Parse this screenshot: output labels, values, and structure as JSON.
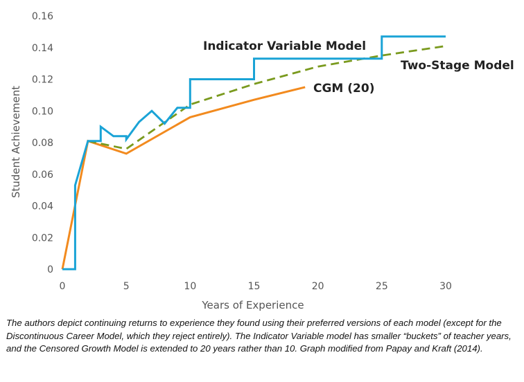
{
  "chart_data": {
    "type": "line",
    "xlabel": "Years of Experience",
    "ylabel": "Student Achievement",
    "xlim": [
      0,
      30
    ],
    "ylim": [
      0,
      0.16
    ],
    "x_ticks": [
      "0",
      "5",
      "10",
      "15",
      "20",
      "25",
      "30"
    ],
    "y_ticks": [
      "0",
      "0.02",
      "0.04",
      "0.06",
      "0.08",
      "0.10",
      "0.12",
      "0.14",
      "0.16"
    ],
    "grid": false,
    "legend": "inline labels",
    "series": [
      {
        "name": "Indicator Variable Model",
        "color": "#1aa3d6",
        "dash": "solid",
        "x": [
          0,
          1,
          1,
          2,
          3,
          3,
          4,
          5,
          5,
          6,
          7,
          8,
          9,
          10,
          10,
          15,
          15,
          25,
          25,
          30
        ],
        "y": [
          0,
          0,
          0.053,
          0.081,
          0.081,
          0.09,
          0.084,
          0.084,
          0.082,
          0.093,
          0.1,
          0.092,
          0.102,
          0.102,
          0.12,
          0.12,
          0.133,
          0.133,
          0.147,
          0.147
        ]
      },
      {
        "name": "Two-Stage Model",
        "color": "#7a9a1e",
        "dash": "dashed",
        "x": [
          2,
          5,
          10,
          15,
          20,
          25,
          30
        ],
        "y": [
          0.081,
          0.076,
          0.104,
          0.117,
          0.128,
          0.135,
          0.141
        ]
      },
      {
        "name": "CGM (20)",
        "color": "#f28a1e",
        "dash": "solid",
        "x": [
          0,
          2,
          5,
          10,
          15,
          19
        ],
        "y": [
          0,
          0.081,
          0.073,
          0.096,
          0.107,
          0.115
        ]
      }
    ]
  },
  "caption": "The authors depict continuing returns to experience they found using their preferred versions of each model (except for the Discontinuous Career Model, which they reject entirely). The Indicator Variable model has smaller “buckets” of teacher years, and the Censored Growth Model is extended to 20 years rather than 10. Graph modified from Papay and Kraft (2014)."
}
